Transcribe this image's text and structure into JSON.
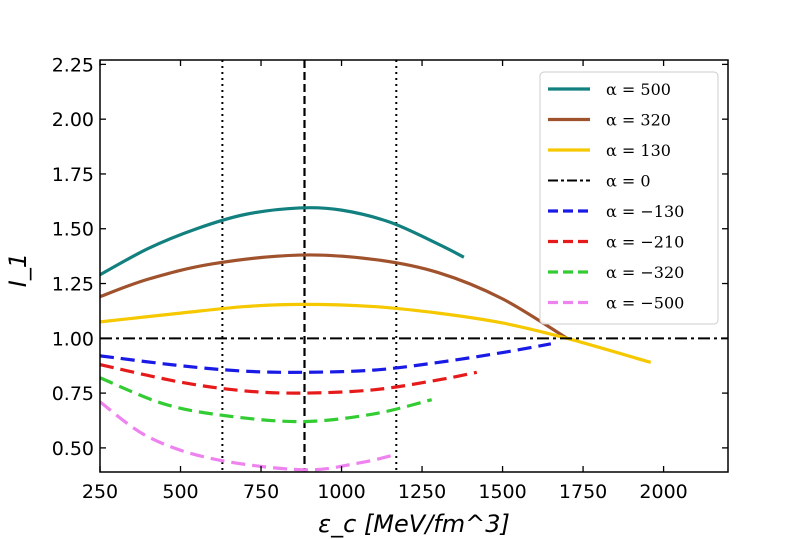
{
  "chart_data": {
    "type": "line",
    "xlabel": "ε_c [MeV/fm^3]",
    "ylabel": "I_1",
    "xlim": [
      250,
      2200
    ],
    "ylim": [
      0.39,
      2.27
    ],
    "xticks": [
      250,
      500,
      750,
      1000,
      1250,
      1500,
      1750,
      2000
    ],
    "yticks": [
      0.5,
      0.75,
      1.0,
      1.25,
      1.5,
      1.75,
      2.0,
      2.25
    ],
    "xtick_labels": [
      "250",
      "500",
      "750",
      "1000",
      "1250",
      "1500",
      "1750",
      "2000"
    ],
    "ytick_labels": [
      "0.50",
      "0.75",
      "1.00",
      "1.25",
      "1.50",
      "1.75",
      "2.00",
      "2.25"
    ],
    "grid": false,
    "legend_position": "top-right",
    "vertical_lines": [
      {
        "x": 630,
        "style": "dotted"
      },
      {
        "x": 885,
        "style": "dashed"
      },
      {
        "x": 1170,
        "style": "dotted"
      }
    ],
    "series": [
      {
        "name": "α = 500",
        "color": "#138080",
        "style": "solid",
        "x": [
          250,
          400,
          550,
          700,
          870,
          1000,
          1150,
          1300,
          1380
        ],
        "y": [
          1.29,
          1.41,
          1.5,
          1.565,
          1.595,
          1.585,
          1.53,
          1.43,
          1.37
        ]
      },
      {
        "name": "α = 320",
        "color": "#a0522d",
        "style": "solid",
        "x": [
          250,
          400,
          600,
          870,
          1100,
          1300,
          1500,
          1700
        ],
        "y": [
          1.19,
          1.27,
          1.34,
          1.38,
          1.36,
          1.3,
          1.18,
          1.0
        ]
      },
      {
        "name": "α = 130",
        "color": "#f5c800",
        "style": "solid",
        "x": [
          250,
          500,
          700,
          880,
          1100,
          1300,
          1500,
          1700,
          1960
        ],
        "y": [
          1.075,
          1.115,
          1.145,
          1.155,
          1.145,
          1.115,
          1.07,
          1.0,
          0.89
        ]
      },
      {
        "name": "α = 0",
        "color": "#000000",
        "style": "dashdot",
        "x": [
          250,
          2200
        ],
        "y": [
          1.0,
          1.0
        ]
      },
      {
        "name": "α = −130",
        "color": "#1a1ae6",
        "style": "dashed",
        "x": [
          250,
          500,
          700,
          880,
          1100,
          1300,
          1500,
          1650
        ],
        "y": [
          0.92,
          0.875,
          0.85,
          0.845,
          0.855,
          0.89,
          0.935,
          0.975
        ]
      },
      {
        "name": "α = −210",
        "color": "#e61a1a",
        "style": "dashed",
        "x": [
          250,
          500,
          700,
          880,
          1100,
          1300,
          1420
        ],
        "y": [
          0.88,
          0.8,
          0.76,
          0.75,
          0.765,
          0.81,
          0.845
        ]
      },
      {
        "name": "α = −320",
        "color": "#33cc33",
        "style": "dashed",
        "x": [
          250,
          450,
          650,
          880,
          1100,
          1280
        ],
        "y": [
          0.82,
          0.7,
          0.645,
          0.62,
          0.655,
          0.72
        ]
      },
      {
        "name": "α = −500",
        "color": "#ee82ee",
        "style": "dashed",
        "x": [
          250,
          400,
          600,
          880,
          1050,
          1170
        ],
        "y": [
          0.71,
          0.55,
          0.45,
          0.4,
          0.43,
          0.47
        ]
      }
    ]
  }
}
